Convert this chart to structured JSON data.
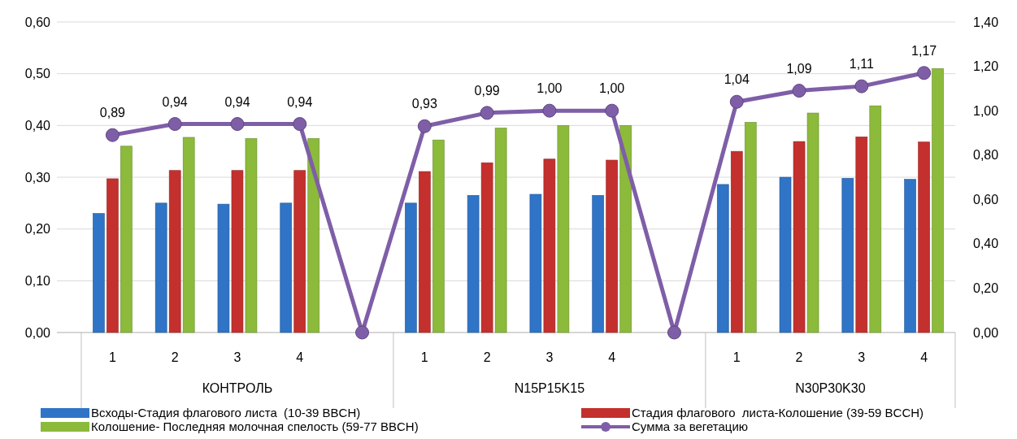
{
  "chart_data": {
    "type": "bar",
    "categories": [
      "1",
      "2",
      "3",
      "4",
      null,
      "1",
      "2",
      "3",
      "4",
      null,
      "1",
      "2",
      "3",
      "4"
    ],
    "annotations": [
      "КОНТРОЛЬ",
      "N15P15K15",
      "N30P30K30"
    ],
    "series": [
      {
        "name": "Всходы-Стадия флагового листа  (10-39 BBCH)",
        "color": "#2f74c6",
        "values": [
          0.23,
          0.25,
          0.248,
          0.25,
          null,
          0.25,
          0.265,
          0.267,
          0.265,
          null,
          0.286,
          0.3,
          0.298,
          0.296
        ]
      },
      {
        "name": "Стадия флагового  листа-Колошение (39-59 BCCH)",
        "color": "#c3302d",
        "values": [
          0.297,
          0.313,
          0.313,
          0.313,
          null,
          0.311,
          0.328,
          0.335,
          0.333,
          null,
          0.35,
          0.369,
          0.378,
          0.368
        ]
      },
      {
        "name": "Колошение- Последняя молочная спелость (59-77 BBCH)",
        "color": "#8cba3b",
        "values": [
          0.36,
          0.377,
          0.375,
          0.375,
          null,
          0.372,
          0.395,
          0.4,
          0.4,
          null,
          0.406,
          0.424,
          0.438,
          0.51
        ]
      },
      {
        "name": "Сумма за вегетацию",
        "type": "line",
        "axis": "y2",
        "color": "#7f5ea8",
        "marker": "circle",
        "values": [
          0.89,
          0.94,
          0.94,
          0.94,
          0,
          0.93,
          0.99,
          1.0,
          1.0,
          0,
          1.04,
          1.09,
          1.11,
          1.17
        ],
        "value_labels": [
          "0,89",
          "0,94",
          "0,94",
          "0,94",
          null,
          "0,93",
          "0,99",
          "1,00",
          "1,00",
          null,
          "1,04",
          "1,09",
          "1,11",
          "1,17"
        ]
      }
    ],
    "ylim": [
      0,
      0.6
    ],
    "yticks": [
      {
        "value": 0,
        "label": "0,00"
      },
      {
        "value": 0.1,
        "label": "0,10"
      },
      {
        "value": 0.2,
        "label": "0,20"
      },
      {
        "value": 0.3,
        "label": "0,30"
      },
      {
        "value": 0.4,
        "label": "0,40"
      },
      {
        "value": 0.5,
        "label": "0,50"
      },
      {
        "value": 0.6,
        "label": "0,60"
      }
    ],
    "y2lim": [
      0,
      1.4
    ],
    "y2ticks": [
      {
        "value": 0,
        "label": "0,00"
      },
      {
        "value": 0.2,
        "label": "0,20"
      },
      {
        "value": 0.4,
        "label": "0,40"
      },
      {
        "value": 0.6,
        "label": "0,60"
      },
      {
        "value": 0.8,
        "label": "0,80"
      },
      {
        "value": 1.0,
        "label": "1,00"
      },
      {
        "value": 1.2,
        "label": "1,20"
      },
      {
        "value": 1.4,
        "label": "1,40"
      }
    ],
    "grid": "y",
    "legend": "bottom"
  }
}
